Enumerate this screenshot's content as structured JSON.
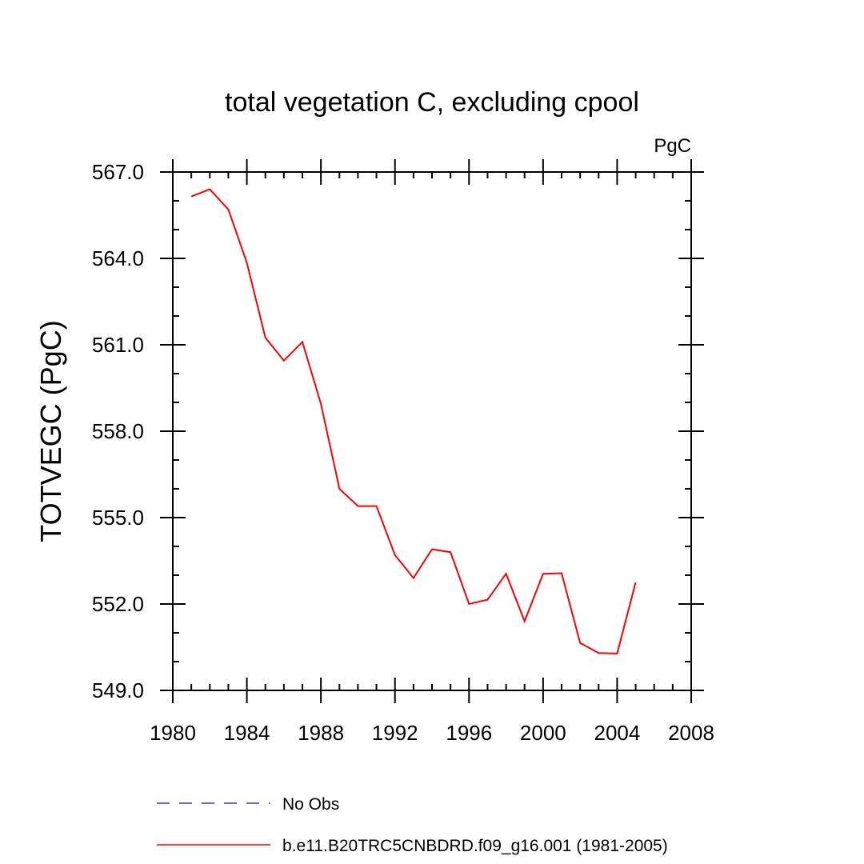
{
  "chart_data": {
    "type": "line",
    "title": "total vegetation C, excluding cpool",
    "units_label": "PgC",
    "xlabel": "",
    "ylabel": "TOTVEGC  (PgC)",
    "xlim": [
      1980,
      2008
    ],
    "ylim": [
      549.0,
      567.0
    ],
    "x_ticks": [
      1980,
      1984,
      1988,
      1992,
      1996,
      2000,
      2004,
      2008
    ],
    "x_tick_labels": [
      "1980",
      "1984",
      "1988",
      "1992",
      "1996",
      "2000",
      "2004",
      "2008"
    ],
    "x_minor_step": 1,
    "y_ticks": [
      549.0,
      552.0,
      555.0,
      558.0,
      561.0,
      564.0,
      567.0
    ],
    "y_tick_labels": [
      "549.0",
      "552.0",
      "555.0",
      "558.0",
      "561.0",
      "564.0",
      "567.0"
    ],
    "y_minor_step": 1,
    "grid": false,
    "legend_position": "bottom",
    "series": [
      {
        "name": "b.e11.B20TRC5CNBDRD.f09_g16.001 (1981-2005)",
        "color": "#ff0000",
        "dash": "solid",
        "x": [
          1981,
          1982,
          1983,
          1984,
          1985,
          1986,
          1987,
          1988,
          1989,
          1990,
          1991,
          1992,
          1993,
          1994,
          1995,
          1996,
          1997,
          1998,
          1999,
          2000,
          2001,
          2002,
          2003,
          2004,
          2005
        ],
        "values": [
          566.15,
          566.4,
          565.7,
          563.85,
          561.25,
          560.45,
          561.1,
          558.95,
          556.0,
          555.4,
          555.4,
          553.7,
          552.9,
          553.9,
          553.8,
          552.0,
          552.15,
          553.05,
          551.4,
          553.05,
          553.07,
          550.65,
          550.3,
          550.28,
          552.75
        ]
      }
    ],
    "legend": [
      {
        "label": "No Obs",
        "color": "#3333ff",
        "dash": "dashed"
      },
      {
        "label": "b.e11.B20TRC5CNBDRD.f09_g16.001 (1981-2005)",
        "color": "#ff0000",
        "dash": "solid"
      }
    ]
  }
}
